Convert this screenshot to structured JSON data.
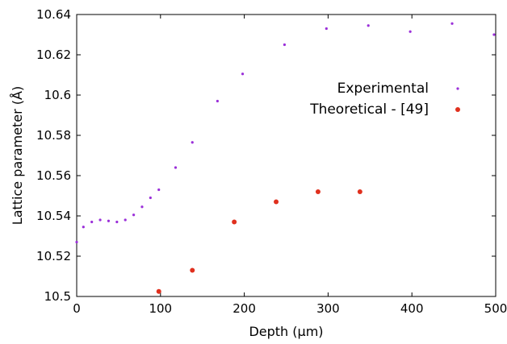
{
  "chart_data": {
    "type": "scatter",
    "title": "",
    "xlabel": "Depth (µm)",
    "ylabel": "Lattice parameter (Å)",
    "xlim": [
      0,
      500
    ],
    "ylim": [
      10.5,
      10.64
    ],
    "x_ticks": [
      0,
      100,
      200,
      300,
      400,
      500
    ],
    "y_ticks": [
      10.5,
      10.52,
      10.54,
      10.56,
      10.58,
      10.6,
      10.62,
      10.64
    ],
    "x_tick_labels": [
      "0",
      "100",
      "200",
      "300",
      "400",
      "500"
    ],
    "y_tick_labels": [
      "10.5",
      "10.52",
      "10.54",
      "10.56",
      "10.58",
      "10.6",
      "10.62",
      "10.64"
    ],
    "grid": false,
    "legend_position": "upper-right",
    "series": [
      {
        "name": "Experimental",
        "color": "#9b30d9",
        "marker": "small-dot",
        "x": [
          0,
          8,
          18,
          28,
          38,
          48,
          58,
          68,
          78,
          88,
          98,
          118,
          138,
          168,
          198,
          248,
          298,
          348,
          398,
          448,
          498
        ],
        "y": [
          10.527,
          10.5345,
          10.537,
          10.538,
          10.5375,
          10.537,
          10.538,
          10.5405,
          10.5445,
          10.549,
          10.553,
          10.564,
          10.5765,
          10.597,
          10.6105,
          10.625,
          10.633,
          10.6345,
          10.6315,
          10.6355,
          10.63
        ]
      },
      {
        "name": "Theoretical - [49]",
        "color": "#e0301e",
        "marker": "dot",
        "x": [
          98,
          138,
          188,
          238,
          288,
          338
        ],
        "y": [
          10.5025,
          10.513,
          10.537,
          10.547,
          10.552,
          10.552
        ]
      }
    ]
  }
}
